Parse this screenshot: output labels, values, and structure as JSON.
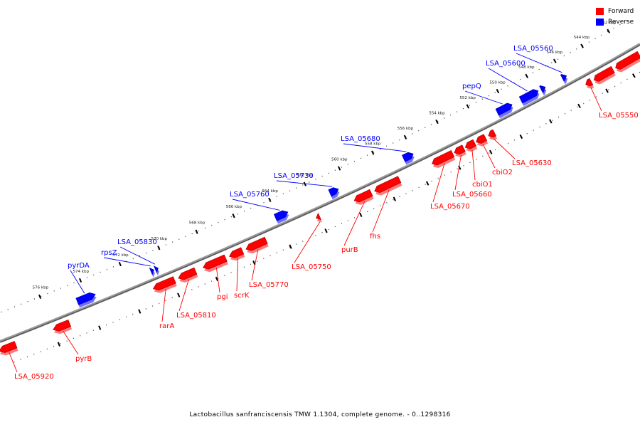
{
  "legend": {
    "forward_label": "Forward",
    "reverse_label": "Reverse",
    "forward_color": "#ff0000",
    "reverse_color": "#0000ff"
  },
  "caption": "Lactobacillus sanfranciscensis TMW 1.1304, complete genome. - 0..1298316",
  "ticks": [
    {
      "label": "542 kbp",
      "kbp": 542
    },
    {
      "label": "544 kbp",
      "kbp": 544
    },
    {
      "label": "546 kbp",
      "kbp": 546
    },
    {
      "label": "548 kbp",
      "kbp": 548
    },
    {
      "label": "550 kbp",
      "kbp": 550
    },
    {
      "label": "552 kbp",
      "kbp": 552
    },
    {
      "label": "554 kbp",
      "kbp": 554
    },
    {
      "label": "556 kbp",
      "kbp": 556
    },
    {
      "label": "558 kbp",
      "kbp": 558
    },
    {
      "label": "560 kbp",
      "kbp": 560
    },
    {
      "label": "562 kbp",
      "kbp": 562
    },
    {
      "label": "564 kbp",
      "kbp": 564
    },
    {
      "label": "566 kbp",
      "kbp": 566
    },
    {
      "label": "568 kbp",
      "kbp": 568
    },
    {
      "label": "570 kbp",
      "kbp": 570
    },
    {
      "label": "572 kbp",
      "kbp": 572
    },
    {
      "label": "574 kbp",
      "kbp": 574
    },
    {
      "label": "576 kbp",
      "kbp": 576
    }
  ],
  "genes": [
    {
      "strand": "forward",
      "start": 541.0,
      "end": 542.8,
      "label": ""
    },
    {
      "strand": "forward",
      "start": 543.0,
      "end": 544.4,
      "label": ""
    },
    {
      "strand": "forward",
      "start": 544.6,
      "end": 545.0,
      "label": "LSA_05550"
    },
    {
      "strand": "reverse",
      "start": 545.8,
      "end": 546.1,
      "label": "LSA_05560"
    },
    {
      "strand": "reverse",
      "start": 547.3,
      "end": 547.6,
      "label": ""
    },
    {
      "strand": "reverse",
      "start": 547.8,
      "end": 549.0,
      "label": "LSA_05600"
    },
    {
      "strand": "reverse",
      "start": 549.6,
      "end": 550.6,
      "label": "pepQ"
    },
    {
      "strand": "forward",
      "start": 551.3,
      "end": 551.7,
      "label": "LSA_05630"
    },
    {
      "strand": "forward",
      "start": 551.9,
      "end": 552.5,
      "label": "cbiO2"
    },
    {
      "strand": "forward",
      "start": 552.6,
      "end": 553.2,
      "label": "cbiO1"
    },
    {
      "strand": "forward",
      "start": 553.3,
      "end": 553.9,
      "label": "LSA_05660"
    },
    {
      "strand": "forward",
      "start": 554.0,
      "end": 555.3,
      "label": "LSA_05670"
    },
    {
      "strand": "reverse",
      "start": 556.0,
      "end": 556.6,
      "label": "LSA_05680"
    },
    {
      "strand": "forward",
      "start": 557.3,
      "end": 558.8,
      "label": "fhs"
    },
    {
      "strand": "forward",
      "start": 559.0,
      "end": 560.0,
      "label": "purB"
    },
    {
      "strand": "reverse",
      "start": 560.5,
      "end": 561.0,
      "label": "LSA_05730"
    },
    {
      "strand": "forward",
      "start": 562.0,
      "end": 562.2,
      "label": "LSA_05750"
    },
    {
      "strand": "reverse",
      "start": 563.4,
      "end": 564.1,
      "label": "LSA_05760"
    },
    {
      "strand": "forward",
      "start": 565.0,
      "end": 566.1,
      "label": "LSA_05770"
    },
    {
      "strand": "forward",
      "start": 566.3,
      "end": 567.0,
      "label": "scrK"
    },
    {
      "strand": "forward",
      "start": 567.2,
      "end": 568.4,
      "label": "pgi"
    },
    {
      "strand": "forward",
      "start": 568.8,
      "end": 569.7,
      "label": "LSA_05810"
    },
    {
      "strand": "forward",
      "start": 569.9,
      "end": 571.0,
      "label": "rarA"
    },
    {
      "strand": "reverse",
      "start": 570.4,
      "end": 570.55,
      "label": "LSA_05830"
    },
    {
      "strand": "reverse",
      "start": 570.62,
      "end": 570.78,
      "label": "rpsZ"
    },
    {
      "strand": "reverse",
      "start": 573.6,
      "end": 574.5,
      "label": "pyrDA"
    },
    {
      "strand": "forward",
      "start": 575.2,
      "end": 576.0,
      "label": "pyrB"
    },
    {
      "strand": "forward",
      "start": 577.8,
      "end": 578.6,
      "label": "LSA_05920"
    }
  ]
}
